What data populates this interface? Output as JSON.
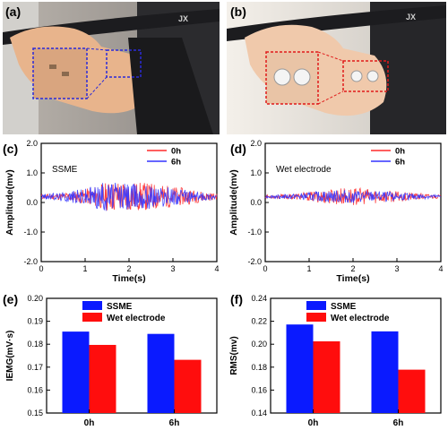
{
  "panels": {
    "a": "(a)",
    "b": "(b)",
    "c": "(c)",
    "d": "(d)",
    "e": "(e)",
    "f": "(f)"
  },
  "photos": {
    "a": {
      "logo_text": "JX"
    },
    "b": {
      "logo_text": "JX"
    }
  },
  "colors": {
    "series_0h": "#ff2a2a",
    "series_6h": "#3333ff",
    "bar_ssme": "#0a1aff",
    "bar_wet": "#ff0d0d",
    "photo_box_a": "#2a2ad8",
    "photo_box_b": "#e01a1a"
  },
  "chart_data": [
    {
      "id": "c",
      "type": "line",
      "annotation": "SSME",
      "xlabel": "Time(s)",
      "ylabel": "Amplitude(mv)",
      "xlim": [
        0,
        4
      ],
      "ylim": [
        -2.0,
        2.0
      ],
      "xticks": [
        "0",
        "1",
        "2",
        "3",
        "4"
      ],
      "yticks": [
        "-2.0",
        "-1.0",
        "0.0",
        "1.0",
        "2.0"
      ],
      "series": [
        {
          "name": "0h",
          "envelope": [
            [
              0,
              0.08
            ],
            [
              0.5,
              0.12
            ],
            [
              1.0,
              0.25
            ],
            [
              1.4,
              0.45
            ],
            [
              1.8,
              0.55
            ],
            [
              2.2,
              0.5
            ],
            [
              2.6,
              0.45
            ],
            [
              3.0,
              0.35
            ],
            [
              3.4,
              0.25
            ],
            [
              3.8,
              0.15
            ],
            [
              4.0,
              0.1
            ]
          ]
        },
        {
          "name": "6h",
          "envelope": [
            [
              0,
              0.08
            ],
            [
              0.5,
              0.15
            ],
            [
              1.0,
              0.3
            ],
            [
              1.4,
              0.5
            ],
            [
              1.8,
              0.5
            ],
            [
              2.2,
              0.45
            ],
            [
              2.6,
              0.4
            ],
            [
              3.0,
              0.3
            ],
            [
              3.4,
              0.2
            ],
            [
              3.8,
              0.12
            ],
            [
              4.0,
              0.08
            ]
          ]
        }
      ]
    },
    {
      "id": "d",
      "type": "line",
      "annotation": "Wet electrode",
      "xlabel": "Time(s)",
      "ylabel": "Amplitude(mv)",
      "xlim": [
        0,
        4
      ],
      "ylim": [
        -2.0,
        2.0
      ],
      "xticks": [
        "0",
        "1",
        "2",
        "3",
        "4"
      ],
      "yticks": [
        "-2.0",
        "-1.0",
        "0.0",
        "1.0",
        "2.0"
      ],
      "series": [
        {
          "name": "0h",
          "envelope": [
            [
              0,
              0.05
            ],
            [
              0.5,
              0.08
            ],
            [
              1.0,
              0.15
            ],
            [
              1.4,
              0.25
            ],
            [
              1.8,
              0.3
            ],
            [
              2.2,
              0.28
            ],
            [
              2.6,
              0.22
            ],
            [
              3.0,
              0.18
            ],
            [
              3.4,
              0.12
            ],
            [
              3.8,
              0.08
            ],
            [
              4.0,
              0.05
            ]
          ]
        },
        {
          "name": "6h",
          "envelope": [
            [
              0,
              0.05
            ],
            [
              0.5,
              0.08
            ],
            [
              1.0,
              0.14
            ],
            [
              1.4,
              0.2
            ],
            [
              1.8,
              0.22
            ],
            [
              2.2,
              0.2
            ],
            [
              2.6,
              0.18
            ],
            [
              3.0,
              0.14
            ],
            [
              3.4,
              0.1
            ],
            [
              3.8,
              0.07
            ],
            [
              4.0,
              0.05
            ]
          ]
        }
      ]
    },
    {
      "id": "e",
      "type": "bar",
      "ylabel": "IEMG(mV·s)",
      "categories": [
        "0h",
        "6h"
      ],
      "ylim": [
        0.15,
        0.2
      ],
      "yticks": [
        "0.15",
        "0.16",
        "0.17",
        "0.18",
        "0.19",
        "0.20"
      ],
      "series": [
        {
          "name": "SSME",
          "values": [
            0.1855,
            0.1845
          ]
        },
        {
          "name": "Wet electrode",
          "values": [
            0.1797,
            0.1732
          ]
        }
      ]
    },
    {
      "id": "f",
      "type": "bar",
      "ylabel": "RMS(mv)",
      "categories": [
        "0h",
        "6h"
      ],
      "ylim": [
        0.14,
        0.24
      ],
      "yticks": [
        "0.14",
        "0.16",
        "0.18",
        "0.20",
        "0.22",
        "0.24"
      ],
      "series": [
        {
          "name": "SSME",
          "values": [
            0.2172,
            0.2112
          ]
        },
        {
          "name": "Wet electrode",
          "values": [
            0.2025,
            0.1778
          ]
        }
      ]
    }
  ]
}
